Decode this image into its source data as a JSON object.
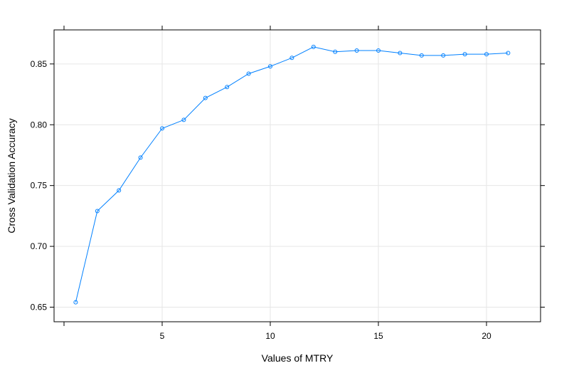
{
  "chart_data": {
    "type": "line",
    "title": "",
    "xlabel": "Values of MTRY",
    "ylabel": "Cross Validation Accuracy",
    "xlim": [
      0,
      22.5
    ],
    "ylim": [
      0.638,
      0.878
    ],
    "xticks": [
      5,
      10,
      15,
      20
    ],
    "yticks": [
      0.65,
      0.7,
      0.75,
      0.8,
      0.85
    ],
    "ytick_labels": [
      "0.65",
      "0.70",
      "0.75",
      "0.80",
      "0.85"
    ],
    "grid": true,
    "series_color": "#0080ff",
    "grid_color": "#e6e6e6",
    "marker": "circle",
    "series": [
      {
        "x": [
          1,
          2,
          3,
          4,
          5,
          6,
          7,
          8,
          9,
          10,
          11,
          12,
          13,
          14,
          15,
          16,
          17,
          18,
          19,
          20,
          21
        ],
        "values": [
          0.654,
          0.729,
          0.746,
          0.773,
          0.797,
          0.804,
          0.822,
          0.831,
          0.842,
          0.848,
          0.855,
          0.864,
          0.86,
          0.861,
          0.861,
          0.859,
          0.857,
          0.857,
          0.858,
          0.858,
          0.859
        ]
      }
    ]
  }
}
